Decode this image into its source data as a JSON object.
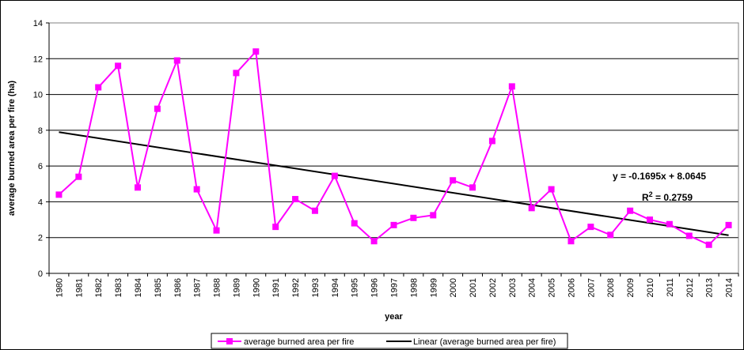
{
  "chart_data": {
    "type": "line",
    "title": "",
    "xlabel": "year",
    "ylabel": "average burned area per fire (ha)",
    "ylim": [
      0,
      14
    ],
    "y_ticks": [
      0,
      2,
      4,
      6,
      8,
      10,
      12,
      14
    ],
    "grid": true,
    "legend_position": "bottom",
    "x": [
      1980,
      1981,
      1982,
      1983,
      1984,
      1985,
      1986,
      1987,
      1988,
      1989,
      1990,
      1991,
      1992,
      1993,
      1994,
      1995,
      1996,
      1997,
      1998,
      1999,
      2000,
      2001,
      2002,
      2003,
      2004,
      2005,
      2006,
      2007,
      2008,
      2009,
      2010,
      2011,
      2012,
      2013,
      2014
    ],
    "x_tick_labels": [
      "1980",
      "1981",
      "1982",
      "1983",
      "1984",
      "1985",
      "1986",
      "1987",
      "1988",
      "1989",
      "1990",
      "1991",
      "1992",
      "1993",
      "1994",
      "1995",
      "1996",
      "1997",
      "1998",
      "1999",
      "2000",
      "2001",
      "2002",
      "2003",
      "2004",
      "2005",
      "2006",
      "2007",
      "2008",
      "2009",
      "2010",
      "2011",
      "2012",
      "2013",
      "2014"
    ],
    "series": [
      {
        "name": "average burned area per fire",
        "color": "#ff00ff",
        "marker": "square",
        "values": [
          4.4,
          5.4,
          10.4,
          11.6,
          4.8,
          9.2,
          11.9,
          4.7,
          2.4,
          11.2,
          12.4,
          2.6,
          4.15,
          3.5,
          5.45,
          2.8,
          1.8,
          2.7,
          3.1,
          3.25,
          5.2,
          4.8,
          7.4,
          10.45,
          3.65,
          4.7,
          1.8,
          2.6,
          2.15,
          3.5,
          3.0,
          2.75,
          2.1,
          1.6,
          2.7
        ]
      },
      {
        "name": "Linear (average burned area per fire)",
        "color": "#000000",
        "type": "trendline",
        "slope": -0.1695,
        "intercept": 8.0645
      }
    ],
    "annotations": {
      "equation": "y = -0.1695x + 8.0645",
      "r2_label": "R",
      "r2_sup": "2",
      "r2_value": " = 0.2759"
    }
  }
}
